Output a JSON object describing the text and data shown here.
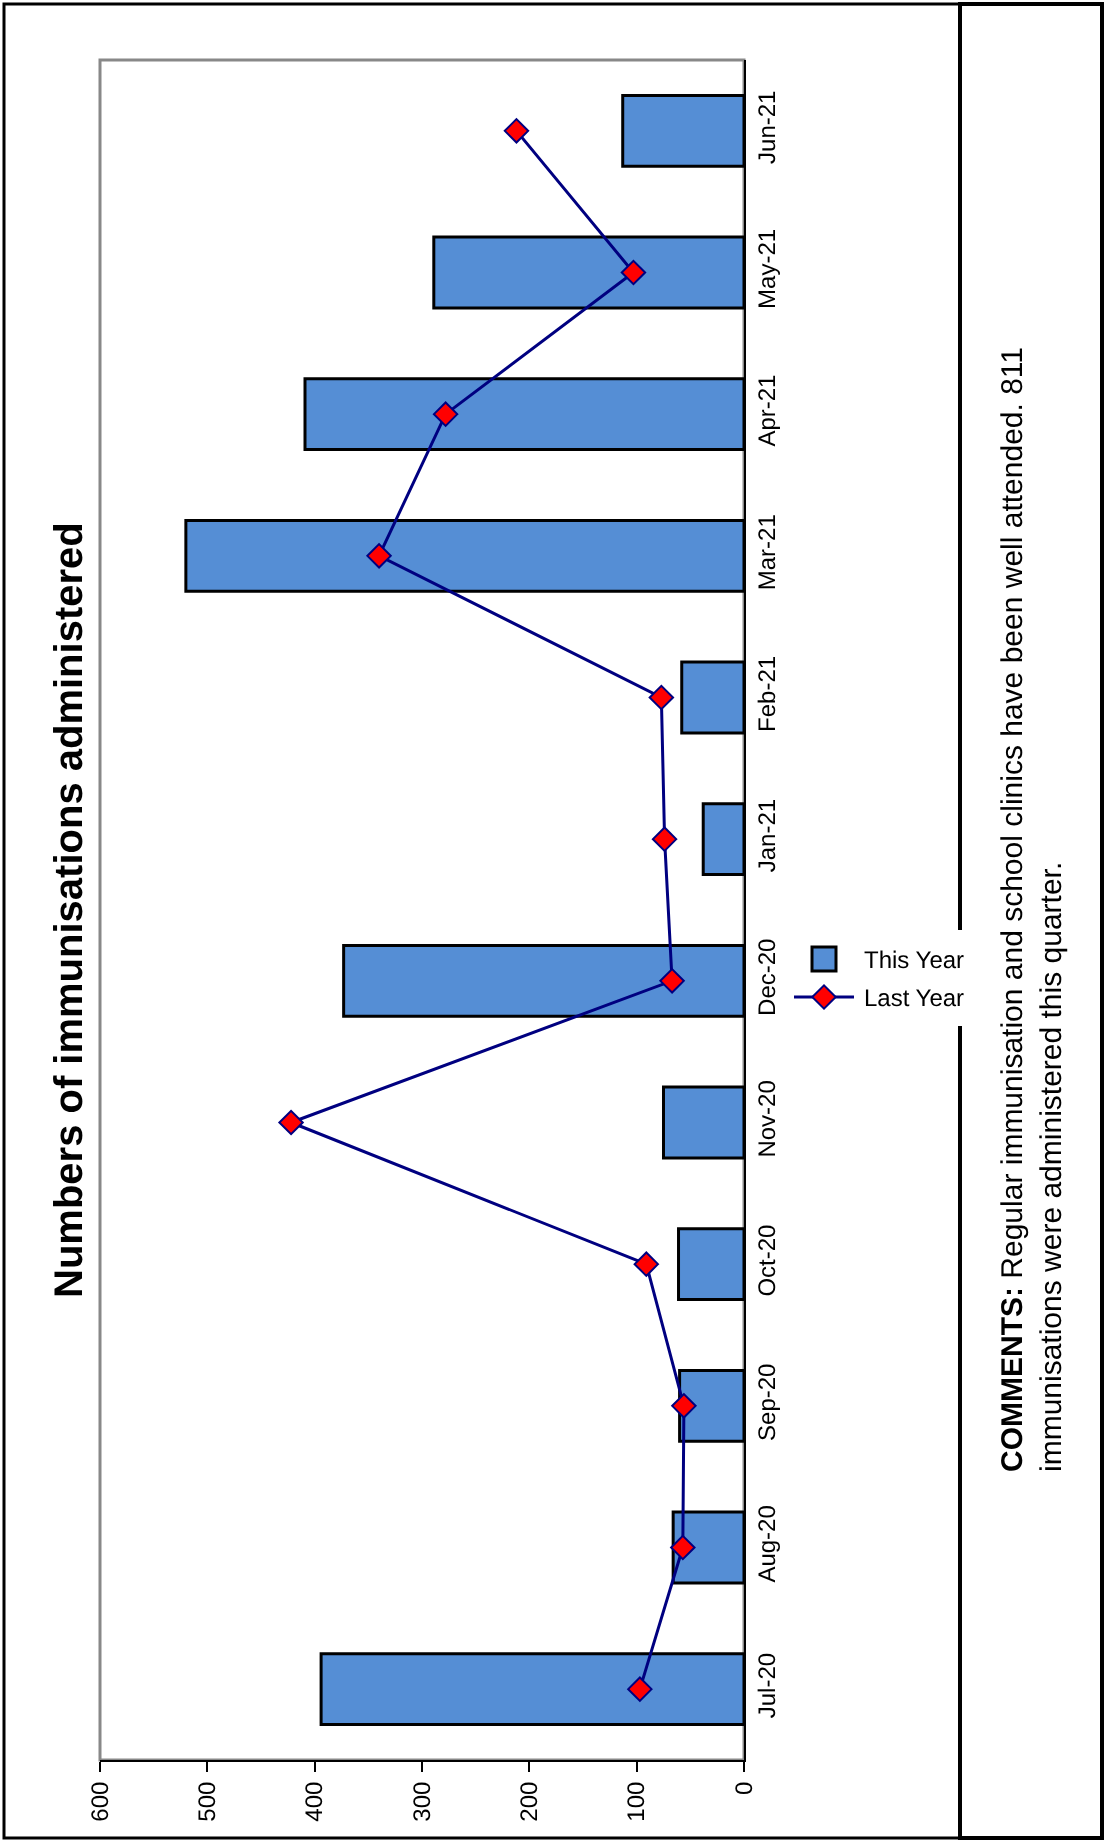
{
  "chart_data": {
    "type": "bar",
    "orientation": "horizontal",
    "title": "Numbers of immunisations administered",
    "categories": [
      "Jun-21",
      "May-21",
      "Apr-21",
      "Mar-21",
      "Feb-21",
      "Jan-21",
      "Dec-20",
      "Nov-20",
      "Oct-20",
      "Sep-20",
      "Aug-20",
      "Jul-20"
    ],
    "series": [
      {
        "name": "This Year",
        "color": "#558ed5",
        "values": [
          113,
          289,
          409,
          520,
          58,
          38,
          373,
          75,
          61,
          60,
          66,
          394
        ]
      },
      {
        "name": "Last Year",
        "type": "line",
        "color": "#000080",
        "marker": "diamond",
        "line_style": "solid",
        "values": [
          212,
          103,
          278,
          340,
          77,
          74,
          67,
          422,
          91,
          56,
          57,
          97
        ]
      }
    ],
    "xlim": [
      600,
      0
    ],
    "xticks": [
      600,
      500,
      400,
      300,
      200,
      100,
      0
    ],
    "grid": false,
    "legend": "right",
    "annotations": [
      "COMMENTS: Regular immunisation and school clinics have been well attended. 811 immunisations were administered this quarter."
    ]
  }
}
